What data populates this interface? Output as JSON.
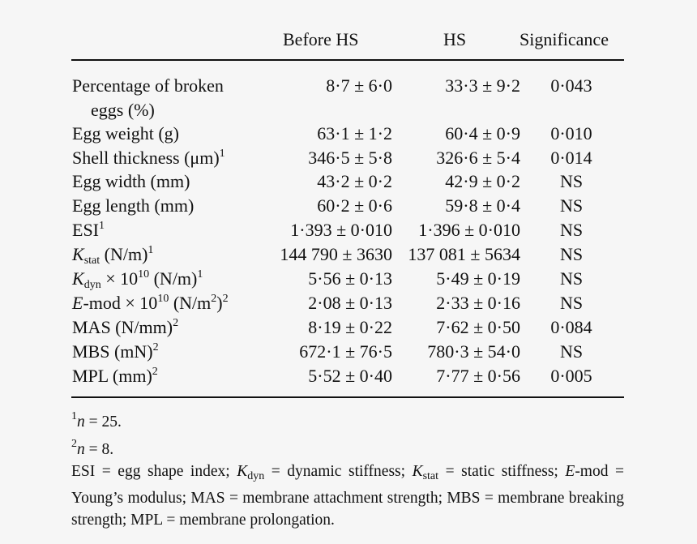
{
  "table": {
    "headers": [
      "Before HS",
      "HS",
      "Significance"
    ],
    "rows": [
      {
        "label": "Percentage of broken",
        "label_cont": "eggs (%)",
        "before": "8·7 ± 6·0",
        "hs": "33·3 ± 9·2",
        "sig": "0·043"
      },
      {
        "label": "Egg weight (g)",
        "before": "63·1 ± 1·2",
        "hs": "60·4 ± 0·9",
        "sig": "0·010"
      },
      {
        "label": "Shell thickness (μm)",
        "sup": "1",
        "before": "346·5 ± 5·8",
        "hs": "326·6 ± 5·4",
        "sig": "0·014"
      },
      {
        "label": "Egg width (mm)",
        "before": "43·2 ± 0·2",
        "hs": "42·9 ± 0·2",
        "sig": "NS"
      },
      {
        "label": "Egg length (mm)",
        "before": "60·2 ± 0·6",
        "hs": "59·8 ± 0·4",
        "sig": "NS"
      },
      {
        "label": "ESI",
        "sup": "1",
        "before": "1·393 ± 0·010",
        "hs": "1·396 ± 0·010",
        "sig": "NS"
      },
      {
        "label_var": "K",
        "label_sub": "stat",
        "label_rest": " (N/m)",
        "sup": "1",
        "before": "144 790 ± 3630",
        "hs": "137 081 ± 5634",
        "sig": "NS"
      },
      {
        "label_var": "K",
        "label_sub": "dyn",
        "label_rest": " × 10",
        "label_sup_mid": "10",
        "label_rest2": " (N/m)",
        "sup": "1",
        "before": "5·56 ± 0·13",
        "hs": "5·49 ± 0·19",
        "sig": "NS"
      },
      {
        "label_var": "E",
        "label_rest": "-mod × 10",
        "label_sup_mid": "10",
        "label_rest2": " (N/m",
        "label_sup_mid2": "2",
        "label_rest3": ")",
        "sup": "2",
        "before": "2·08 ± 0·13",
        "hs": "2·33 ± 0·16",
        "sig": "NS"
      },
      {
        "label": "MAS (N/mm)",
        "sup": "2",
        "before": "8·19 ± 0·22",
        "hs": "7·62 ± 0·50",
        "sig": "0·084"
      },
      {
        "label": "MBS (mN)",
        "sup": "2",
        "before": "672·1 ± 76·5",
        "hs": "780·3 ± 54·0",
        "sig": "NS"
      },
      {
        "label": "MPL (mm)",
        "sup": "2",
        "before": "5·52 ± 0·40",
        "hs": "7·77 ± 0·56",
        "sig": "0·005"
      }
    ]
  },
  "notes": {
    "n1_sup": "1",
    "n1_var": "n",
    "n1_text": " = 25.",
    "n2_sup": "2",
    "n2_var": "n",
    "n2_text": " = 8.",
    "abbr": [
      {
        "t": "ESI = egg shape index; "
      },
      {
        "v": "K",
        "s": "dyn"
      },
      {
        "t": " = dynamic stiffness; "
      },
      {
        "v": "K",
        "s": "stat"
      },
      {
        "t": " = static stiffness; "
      },
      {
        "v": "E"
      },
      {
        "t": "-mod = Young’s modulus; MAS = membrane attachment strength; MBS = membrane breaking strength; MPL = membrane prolongation."
      }
    ]
  }
}
